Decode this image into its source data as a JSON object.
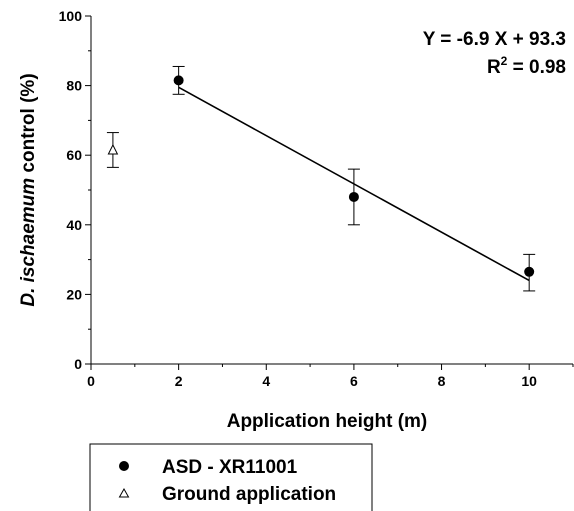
{
  "chart_data": {
    "type": "scatter",
    "xlabel": "Application height (m)",
    "ylabel_italic": "D. ischaemum",
    "ylabel_rest": " control (%)",
    "xlim": [
      0,
      11
    ],
    "ylim": [
      0,
      100
    ],
    "xticks": [
      "0",
      "2",
      "4",
      "6",
      "8",
      "10"
    ],
    "yticks": [
      "0",
      "20",
      "40",
      "60",
      "80",
      "100"
    ],
    "grid": false,
    "legend_placement": "bottom-left",
    "series": [
      {
        "name": "ASD - XR11001",
        "marker": "filled-circle",
        "points": [
          {
            "x": 2,
            "y": 81.5,
            "err_low": 77.5,
            "err_high": 85.5
          },
          {
            "x": 6,
            "y": 48,
            "err_low": 40,
            "err_high": 56
          },
          {
            "x": 10,
            "y": 26.5,
            "err_low": 21,
            "err_high": 31.5
          }
        ]
      },
      {
        "name": "Ground application",
        "marker": "open-triangle",
        "points": [
          {
            "x": 0.5,
            "y": 61.5,
            "err_low": 56.5,
            "err_high": 66.5
          }
        ]
      }
    ],
    "regression": {
      "x_from": 2,
      "x_to": 10,
      "y_from": 79.5,
      "y_to": 24,
      "equation": "Y = -6.9 X + 93.3",
      "r2_prefix": "R",
      "r2_sup": "2",
      "r2_value": " = 0.98"
    }
  }
}
